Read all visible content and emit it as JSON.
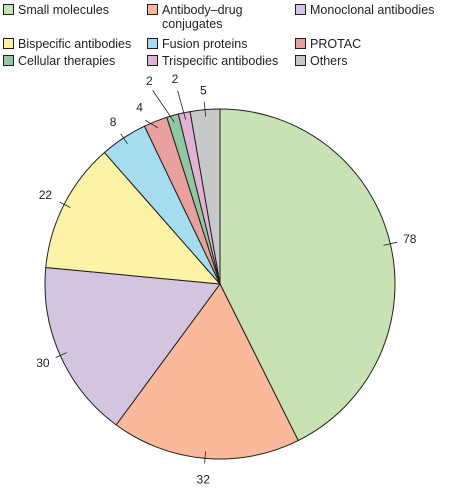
{
  "chart_data": {
    "type": "pie",
    "start": "12 o'clock",
    "direction": "clockwise",
    "legend_position": "top",
    "categories": [
      "Small molecules",
      "Antibody–drug conjugates",
      "Monoclonal antibodies",
      "Bispecific antibodies",
      "Fusion proteins",
      "PROTAC",
      "Cellular therapies",
      "Trispecific antibodies",
      "Others"
    ],
    "slice_order": [
      "Small molecules",
      "Antibody–drug conjugates",
      "Monoclonal antibodies",
      "Bispecific antibodies",
      "Fusion proteins",
      "PROTAC",
      "Cellular therapies",
      "Trispecific antibodies",
      "Others"
    ],
    "values": [
      78,
      32,
      30,
      22,
      8,
      4,
      2,
      2,
      5
    ],
    "value_labels": [
      "78",
      "32",
      "30",
      "22",
      "8",
      "4",
      "2",
      "2",
      "5"
    ],
    "colors": [
      "#c9e2b3",
      "#f9b99a",
      "#d3c4e0",
      "#fdf3a7",
      "#a6dcef",
      "#e8a19c",
      "#92c7a3",
      "#e0b2d6",
      "#c7c8ca"
    ],
    "legend": [
      {
        "label": "Small molecules",
        "color": "#c9e2b3"
      },
      {
        "label": "Antibody–drug\nconjugates",
        "color": "#f9b99a"
      },
      {
        "label": "Monoclonal antibodies",
        "color": "#d3c4e0"
      },
      {
        "label": "Bispecific antibodies",
        "color": "#fdf3a7"
      },
      {
        "label": "Fusion proteins",
        "color": "#a6dcef"
      },
      {
        "label": "PROTAC",
        "color": "#e8a19c"
      },
      {
        "label": "Cellular therapies",
        "color": "#92c7a3"
      },
      {
        "label": "Trispecific antibodies",
        "color": "#e0b2d6"
      },
      {
        "label": "Others",
        "color": "#c7c8ca"
      }
    ]
  }
}
